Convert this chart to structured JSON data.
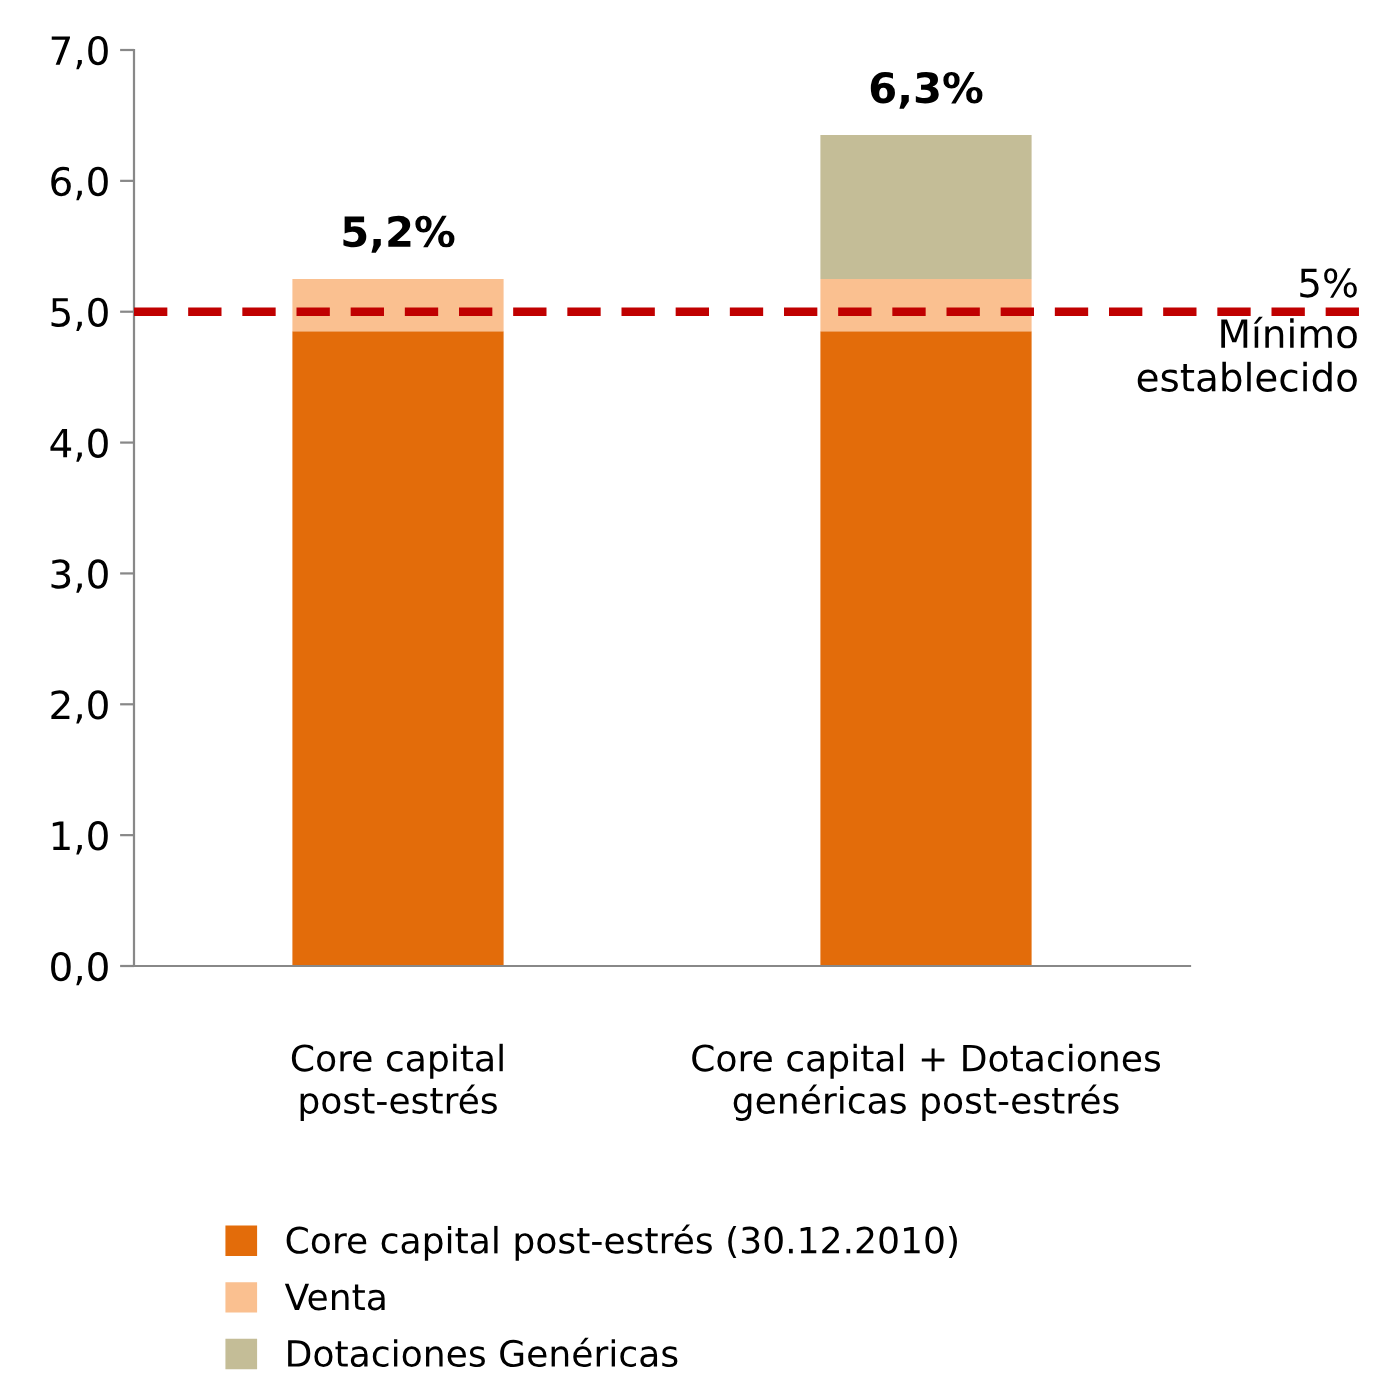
{
  "chart_data": {
    "type": "bar",
    "stacked": true,
    "categories": [
      "Core capital\npost-estrés",
      "Core capital + Dotaciones\ngenéricas post-estrés"
    ],
    "series": [
      {
        "name": "Core capital post-estrés (30.12.2010)",
        "color": "#e36c0a",
        "values": [
          4.85,
          4.85
        ]
      },
      {
        "name": "Venta",
        "color": "#fac090",
        "values": [
          0.4,
          0.4
        ]
      },
      {
        "name": "Dotaciones Genéricas",
        "color": "#c4bd97",
        "values": [
          null,
          1.1
        ]
      }
    ],
    "totals": [
      "5,2%",
      "6,3%"
    ],
    "ylim": [
      0,
      7
    ],
    "yticks": [
      {
        "value": 0,
        "label": "0,0"
      },
      {
        "value": 1,
        "label": "1,0"
      },
      {
        "value": 2,
        "label": "2,0"
      },
      {
        "value": 3,
        "label": "3,0"
      },
      {
        "value": 4,
        "label": "4,0"
      },
      {
        "value": 5,
        "label": "5,0"
      },
      {
        "value": 6,
        "label": "6,0"
      },
      {
        "value": 7,
        "label": "7,0"
      }
    ],
    "ref_lines": [
      {
        "axis": "y",
        "value": 5,
        "label": "5%",
        "color": "#c00000",
        "line_style": "dashed"
      }
    ],
    "annotations": [
      "Mínimo\nestablecido"
    ],
    "grid": false,
    "legend": "bottom"
  }
}
